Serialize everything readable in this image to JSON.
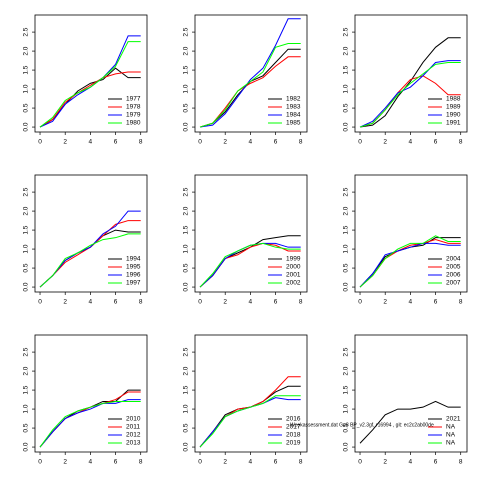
{
  "chart_data": [
    {
      "type": "line",
      "x": [
        0,
        1,
        2,
        3,
        4,
        5,
        6,
        7,
        8
      ],
      "xlim": [
        -0.4,
        8.5
      ],
      "xticks": [
        0,
        2,
        4,
        6,
        8
      ],
      "ylim": [
        -0.13,
        2.95
      ],
      "yticks": [
        {
          "value": 0,
          "label": "0.0"
        },
        0.5,
        {
          "value": 1,
          "label": "1.0"
        },
        1.5,
        {
          "value": 2,
          "label": "2.0"
        },
        2.5
      ],
      "legend": "bottomright",
      "series": [
        {
          "name": "1977",
          "color": "#000000",
          "values": [
            0,
            0.2,
            0.6,
            0.95,
            1.15,
            1.25,
            1.55,
            1.3,
            1.3
          ]
        },
        {
          "name": "1978",
          "color": "#ff0000",
          "values": [
            0,
            0.2,
            0.65,
            0.9,
            1.1,
            1.3,
            1.4,
            1.45,
            1.45
          ]
        },
        {
          "name": "1979",
          "color": "#0000ff",
          "values": [
            0,
            0.15,
            0.6,
            0.85,
            1.05,
            1.3,
            1.65,
            2.4,
            2.4
          ]
        },
        {
          "name": "1980",
          "color": "#00ff00",
          "values": [
            0,
            0.25,
            0.7,
            0.9,
            1.05,
            1.3,
            1.6,
            2.25,
            2.25
          ]
        }
      ]
    },
    {
      "type": "line",
      "x": [
        0,
        1,
        2,
        3,
        4,
        5,
        6,
        7,
        8
      ],
      "xlim": [
        -0.4,
        8.5
      ],
      "xticks": [
        0,
        2,
        4,
        6,
        8
      ],
      "ylim": [
        -0.13,
        2.95
      ],
      "yticks": [
        {
          "value": 0,
          "label": "0.0"
        },
        0.5,
        {
          "value": 1,
          "label": "1.0"
        },
        1.5,
        {
          "value": 2,
          "label": "2.0"
        },
        2.5
      ],
      "legend": "bottomright",
      "series": [
        {
          "name": "1982",
          "color": "#000000",
          "values": [
            0,
            0.1,
            0.4,
            0.85,
            1.2,
            1.35,
            1.7,
            2.05,
            2.05
          ]
        },
        {
          "name": "1983",
          "color": "#ff0000",
          "values": [
            0,
            0.1,
            0.5,
            0.95,
            1.15,
            1.3,
            1.6,
            1.85,
            1.85
          ]
        },
        {
          "name": "1984",
          "color": "#0000ff",
          "values": [
            0,
            0.05,
            0.35,
            0.8,
            1.25,
            1.55,
            2.15,
            2.85,
            2.85
          ]
        },
        {
          "name": "1985",
          "color": "#00ff00",
          "values": [
            0,
            0.1,
            0.45,
            0.95,
            1.2,
            1.45,
            2.1,
            2.2,
            2.2
          ]
        }
      ]
    },
    {
      "type": "line",
      "x": [
        0,
        1,
        2,
        3,
        4,
        5,
        6,
        7,
        8
      ],
      "xlim": [
        -0.4,
        8.5
      ],
      "xticks": [
        0,
        2,
        4,
        6,
        8
      ],
      "ylim": [
        -0.13,
        2.95
      ],
      "yticks": [
        {
          "value": 0,
          "label": "0.0"
        },
        0.5,
        {
          "value": 1,
          "label": "1.0"
        },
        1.5,
        {
          "value": 2,
          "label": "2.0"
        },
        2.5
      ],
      "legend": "bottomright",
      "series": [
        {
          "name": "1988",
          "color": "#000000",
          "values": [
            0,
            0.05,
            0.3,
            0.8,
            1.2,
            1.7,
            2.1,
            2.35,
            2.35
          ]
        },
        {
          "name": "1989",
          "color": "#ff0000",
          "values": [
            0,
            0.1,
            0.45,
            0.9,
            1.25,
            1.35,
            1.15,
            0.85,
            0.85
          ]
        },
        {
          "name": "1990",
          "color": "#0000ff",
          "values": [
            0,
            0.15,
            0.5,
            0.9,
            1.05,
            1.35,
            1.7,
            1.75,
            1.75
          ]
        },
        {
          "name": "1991",
          "color": "#00ff00",
          "values": [
            0,
            0.1,
            0.45,
            0.85,
            1.15,
            1.4,
            1.65,
            1.7,
            1.7
          ]
        }
      ]
    },
    {
      "type": "line",
      "x": [
        0,
        1,
        2,
        3,
        4,
        5,
        6,
        7,
        8
      ],
      "xlim": [
        -0.4,
        8.5
      ],
      "xticks": [
        0,
        2,
        4,
        6,
        8
      ],
      "ylim": [
        -0.13,
        2.95
      ],
      "yticks": [
        {
          "value": 0,
          "label": "0.0"
        },
        0.5,
        {
          "value": 1,
          "label": "1.0"
        },
        1.5,
        {
          "value": 2,
          "label": "2.0"
        },
        2.5
      ],
      "legend": "bottomright",
      "series": [
        {
          "name": "1994",
          "color": "#000000",
          "values": [
            0,
            0.3,
            0.7,
            0.9,
            1.05,
            1.35,
            1.5,
            1.45,
            1.45
          ]
        },
        {
          "name": "1995",
          "color": "#ff0000",
          "values": [
            0,
            0.3,
            0.65,
            0.85,
            1.05,
            1.35,
            1.65,
            1.75,
            1.75
          ]
        },
        {
          "name": "1996",
          "color": "#0000ff",
          "values": [
            0,
            0.3,
            0.7,
            0.9,
            1.05,
            1.4,
            1.6,
            2.0,
            2.0
          ]
        },
        {
          "name": "1997",
          "color": "#00ff00",
          "values": [
            0,
            0.3,
            0.75,
            0.9,
            1.1,
            1.25,
            1.3,
            1.4,
            1.4
          ]
        }
      ]
    },
    {
      "type": "line",
      "x": [
        0,
        1,
        2,
        3,
        4,
        5,
        6,
        7,
        8
      ],
      "xlim": [
        -0.4,
        8.5
      ],
      "xticks": [
        0,
        2,
        4,
        6,
        8
      ],
      "ylim": [
        -0.13,
        2.95
      ],
      "yticks": [
        {
          "value": 0,
          "label": "0.0"
        },
        0.5,
        {
          "value": 1,
          "label": "1.0"
        },
        1.5,
        {
          "value": 2,
          "label": "2.0"
        },
        2.5
      ],
      "legend": "bottomright",
      "series": [
        {
          "name": "1999",
          "color": "#000000",
          "values": [
            0,
            0.3,
            0.75,
            0.9,
            1.05,
            1.25,
            1.3,
            1.35,
            1.35
          ]
        },
        {
          "name": "2000",
          "color": "#ff0000",
          "values": [
            0,
            0.3,
            0.75,
            0.85,
            1.05,
            1.15,
            1.1,
            0.95,
            0.95
          ]
        },
        {
          "name": "2001",
          "color": "#0000ff",
          "values": [
            0,
            0.3,
            0.75,
            0.95,
            1.1,
            1.15,
            1.15,
            1.05,
            1.05
          ]
        },
        {
          "name": "2002",
          "color": "#00ff00",
          "values": [
            0,
            0.35,
            0.8,
            0.95,
            1.1,
            1.15,
            1.05,
            1.0,
            1.0
          ]
        }
      ]
    },
    {
      "type": "line",
      "x": [
        0,
        1,
        2,
        3,
        4,
        5,
        6,
        7,
        8
      ],
      "xlim": [
        -0.4,
        8.5
      ],
      "xticks": [
        0,
        2,
        4,
        6,
        8
      ],
      "ylim": [
        -0.13,
        2.95
      ],
      "yticks": [
        {
          "value": 0,
          "label": "0.0"
        },
        0.5,
        {
          "value": 1,
          "label": "1.0"
        },
        1.5,
        {
          "value": 2,
          "label": "2.0"
        },
        2.5
      ],
      "legend": "bottomright",
      "series": [
        {
          "name": "2004",
          "color": "#000000",
          "values": [
            0,
            0.35,
            0.8,
            0.95,
            1.05,
            1.1,
            1.3,
            1.3,
            1.3
          ]
        },
        {
          "name": "2005",
          "color": "#ff0000",
          "values": [
            0,
            0.3,
            0.75,
            0.95,
            1.1,
            1.15,
            1.25,
            1.15,
            1.15
          ]
        },
        {
          "name": "2006",
          "color": "#0000ff",
          "values": [
            0,
            0.35,
            0.85,
            0.95,
            1.05,
            1.15,
            1.15,
            1.1,
            1.1
          ]
        },
        {
          "name": "2007",
          "color": "#00ff00",
          "values": [
            0,
            0.3,
            0.75,
            1.0,
            1.15,
            1.15,
            1.35,
            1.2,
            1.2
          ]
        }
      ]
    },
    {
      "type": "line",
      "x": [
        0,
        1,
        2,
        3,
        4,
        5,
        6,
        7,
        8
      ],
      "xlim": [
        -0.4,
        8.5
      ],
      "xticks": [
        0,
        2,
        4,
        6,
        8
      ],
      "ylim": [
        -0.13,
        2.95
      ],
      "yticks": [
        {
          "value": 0,
          "label": "0.0"
        },
        0.5,
        {
          "value": 1,
          "label": "1.0"
        },
        1.5,
        {
          "value": 2,
          "label": "2.0"
        },
        2.5
      ],
      "legend": "bottomright",
      "series": [
        {
          "name": "2010",
          "color": "#000000",
          "values": [
            0,
            0.4,
            0.75,
            0.95,
            1.05,
            1.2,
            1.2,
            1.5,
            1.5
          ]
        },
        {
          "name": "2011",
          "color": "#ff0000",
          "values": [
            0,
            0.4,
            0.75,
            0.9,
            1.05,
            1.15,
            1.25,
            1.45,
            1.45
          ]
        },
        {
          "name": "2012",
          "color": "#0000ff",
          "values": [
            0,
            0.4,
            0.75,
            0.9,
            1.0,
            1.15,
            1.15,
            1.25,
            1.25
          ]
        },
        {
          "name": "2013",
          "color": "#00ff00",
          "values": [
            0,
            0.45,
            0.8,
            0.95,
            1.05,
            1.15,
            1.2,
            1.2,
            1.2
          ]
        }
      ]
    },
    {
      "type": "line",
      "x": [
        0,
        1,
        2,
        3,
        4,
        5,
        6,
        7,
        8
      ],
      "xlim": [
        -0.4,
        8.5
      ],
      "xticks": [
        0,
        2,
        4,
        6,
        8
      ],
      "ylim": [
        -0.13,
        2.95
      ],
      "yticks": [
        {
          "value": 0,
          "label": "0.0"
        },
        0.5,
        {
          "value": 1,
          "label": "1.0"
        },
        1.5,
        {
          "value": 2,
          "label": "2.0"
        },
        2.5
      ],
      "legend": "bottomright",
      "series": [
        {
          "name": "2016",
          "color": "#000000",
          "values": [
            0,
            0.4,
            0.85,
            1.0,
            1.05,
            1.2,
            1.45,
            1.6,
            1.6
          ]
        },
        {
          "name": "2017",
          "color": "#ff0000",
          "values": [
            0,
            0.4,
            0.8,
            1.0,
            1.05,
            1.2,
            1.5,
            1.85,
            1.85
          ]
        },
        {
          "name": "2018",
          "color": "#0000ff",
          "values": [
            0,
            0.4,
            0.8,
            0.95,
            1.05,
            1.15,
            1.3,
            1.25,
            1.25
          ]
        },
        {
          "name": "2019",
          "color": "#00ff00",
          "values": [
            0,
            0.35,
            0.8,
            0.95,
            1.05,
            1.15,
            1.35,
            1.35,
            1.35
          ]
        }
      ]
    },
    {
      "type": "line",
      "x": [
        0,
        1,
        2,
        3,
        4,
        5,
        6,
        7,
        8
      ],
      "xlim": [
        -0.4,
        8.5
      ],
      "xticks": [
        0,
        2,
        4,
        6,
        8
      ],
      "ylim": [
        -0.13,
        2.95
      ],
      "yticks": [
        {
          "value": 0,
          "label": "0.0"
        },
        0.5,
        {
          "value": 1,
          "label": "1.0"
        },
        1.5,
        {
          "value": 2,
          "label": "2.0"
        },
        2.5
      ],
      "legend": "bottomright",
      "annotation": "Weekassessment.dat G=8 BP_v2.3gf, r16994 , git: ec2c2ab00de",
      "series": [
        {
          "name": "2021",
          "color": "#000000",
          "values": [
            0.1,
            0.45,
            0.85,
            1.0,
            1.0,
            1.05,
            1.2,
            1.05,
            1.05
          ]
        },
        {
          "name": "NA",
          "color": "#ff0000",
          "values": [
            null,
            null,
            null,
            null,
            null,
            null,
            null,
            null,
            null
          ]
        },
        {
          "name": "NA",
          "color": "#0000ff",
          "values": [
            null,
            null,
            null,
            null,
            null,
            null,
            null,
            null,
            null
          ]
        },
        {
          "name": "NA",
          "color": "#00ff00",
          "values": [
            null,
            null,
            null,
            null,
            null,
            null,
            null,
            null,
            null
          ]
        }
      ]
    }
  ]
}
